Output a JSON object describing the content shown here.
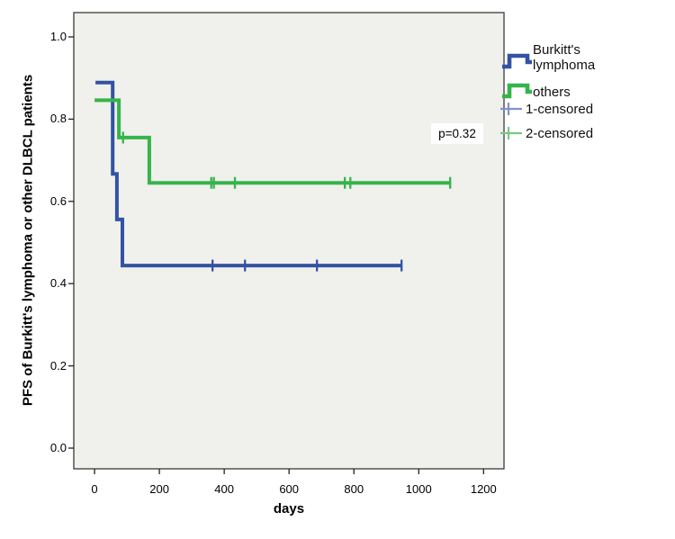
{
  "chart_data": {
    "type": "line",
    "subtype": "kaplan-meier-step-plot",
    "title": "",
    "xlabel": "days",
    "ylabel": "PFS of Burkitt's lymphoma or other DLBCL patients",
    "xlim": [
      -64,
      1263
    ],
    "ylim": [
      -0.0503,
      1.059
    ],
    "grid": false,
    "plot_bg_color": "#F0F0ED",
    "plot_border_color": "#3a3a3a",
    "x_ticks": [
      {
        "v": 0,
        "label": "0"
      },
      {
        "v": 200,
        "label": "200"
      },
      {
        "v": 400,
        "label": "400"
      },
      {
        "v": 600,
        "label": "600"
      },
      {
        "v": 800,
        "label": "800"
      },
      {
        "v": 1000,
        "label": "1000"
      },
      {
        "v": 1200,
        "label": "1200"
      }
    ],
    "y_ticks": [
      {
        "v": 0.0,
        "label": "0.0"
      },
      {
        "v": 0.2,
        "label": "0.2"
      },
      {
        "v": 0.4,
        "label": "0.4"
      },
      {
        "v": 0.6,
        "label": "0.6"
      },
      {
        "v": 0.8,
        "label": "0.8"
      },
      {
        "v": 1.0,
        "label": "1.0"
      }
    ],
    "series": [
      {
        "name": "Burkitt's lymphoma",
        "color": "#3353A2",
        "steps": [
          [
            3,
            0.889
          ],
          [
            56,
            0.889
          ],
          [
            56,
            0.667
          ],
          [
            69,
            0.667
          ],
          [
            69,
            0.556
          ],
          [
            86,
            0.556
          ],
          [
            86,
            0.444
          ],
          [
            947,
            0.444
          ]
        ],
        "censored": [
          [
            364,
            0.444
          ],
          [
            464,
            0.444
          ],
          [
            686,
            0.444
          ],
          [
            947,
            0.444
          ]
        ]
      },
      {
        "name": "others",
        "color": "#35B44A",
        "steps": [
          [
            0,
            0.846
          ],
          [
            75,
            0.846
          ],
          [
            75,
            0.755
          ],
          [
            169,
            0.755
          ],
          [
            169,
            0.645
          ],
          [
            1097,
            0.645
          ]
        ],
        "censored": [
          [
            88,
            0.755
          ],
          [
            360,
            0.645
          ],
          [
            368,
            0.645
          ],
          [
            433,
            0.645
          ],
          [
            772,
            0.645
          ],
          [
            789,
            0.645
          ],
          [
            1097,
            0.645
          ]
        ]
      }
    ],
    "annotation": {
      "text": "p=0.32",
      "x_day": 1120,
      "y_value": 0.76
    },
    "legend": [
      {
        "label": "Burkitt's lymphoma",
        "marker": "step",
        "color": "#3353A2"
      },
      {
        "label": "others",
        "marker": "step",
        "color": "#35B44A"
      },
      {
        "label": "1-censored",
        "marker": "plus",
        "color": "#8291D3"
      },
      {
        "label": "2-censored",
        "marker": "plus",
        "color": "#79C887"
      }
    ],
    "legend_position": "top-right-outside"
  }
}
